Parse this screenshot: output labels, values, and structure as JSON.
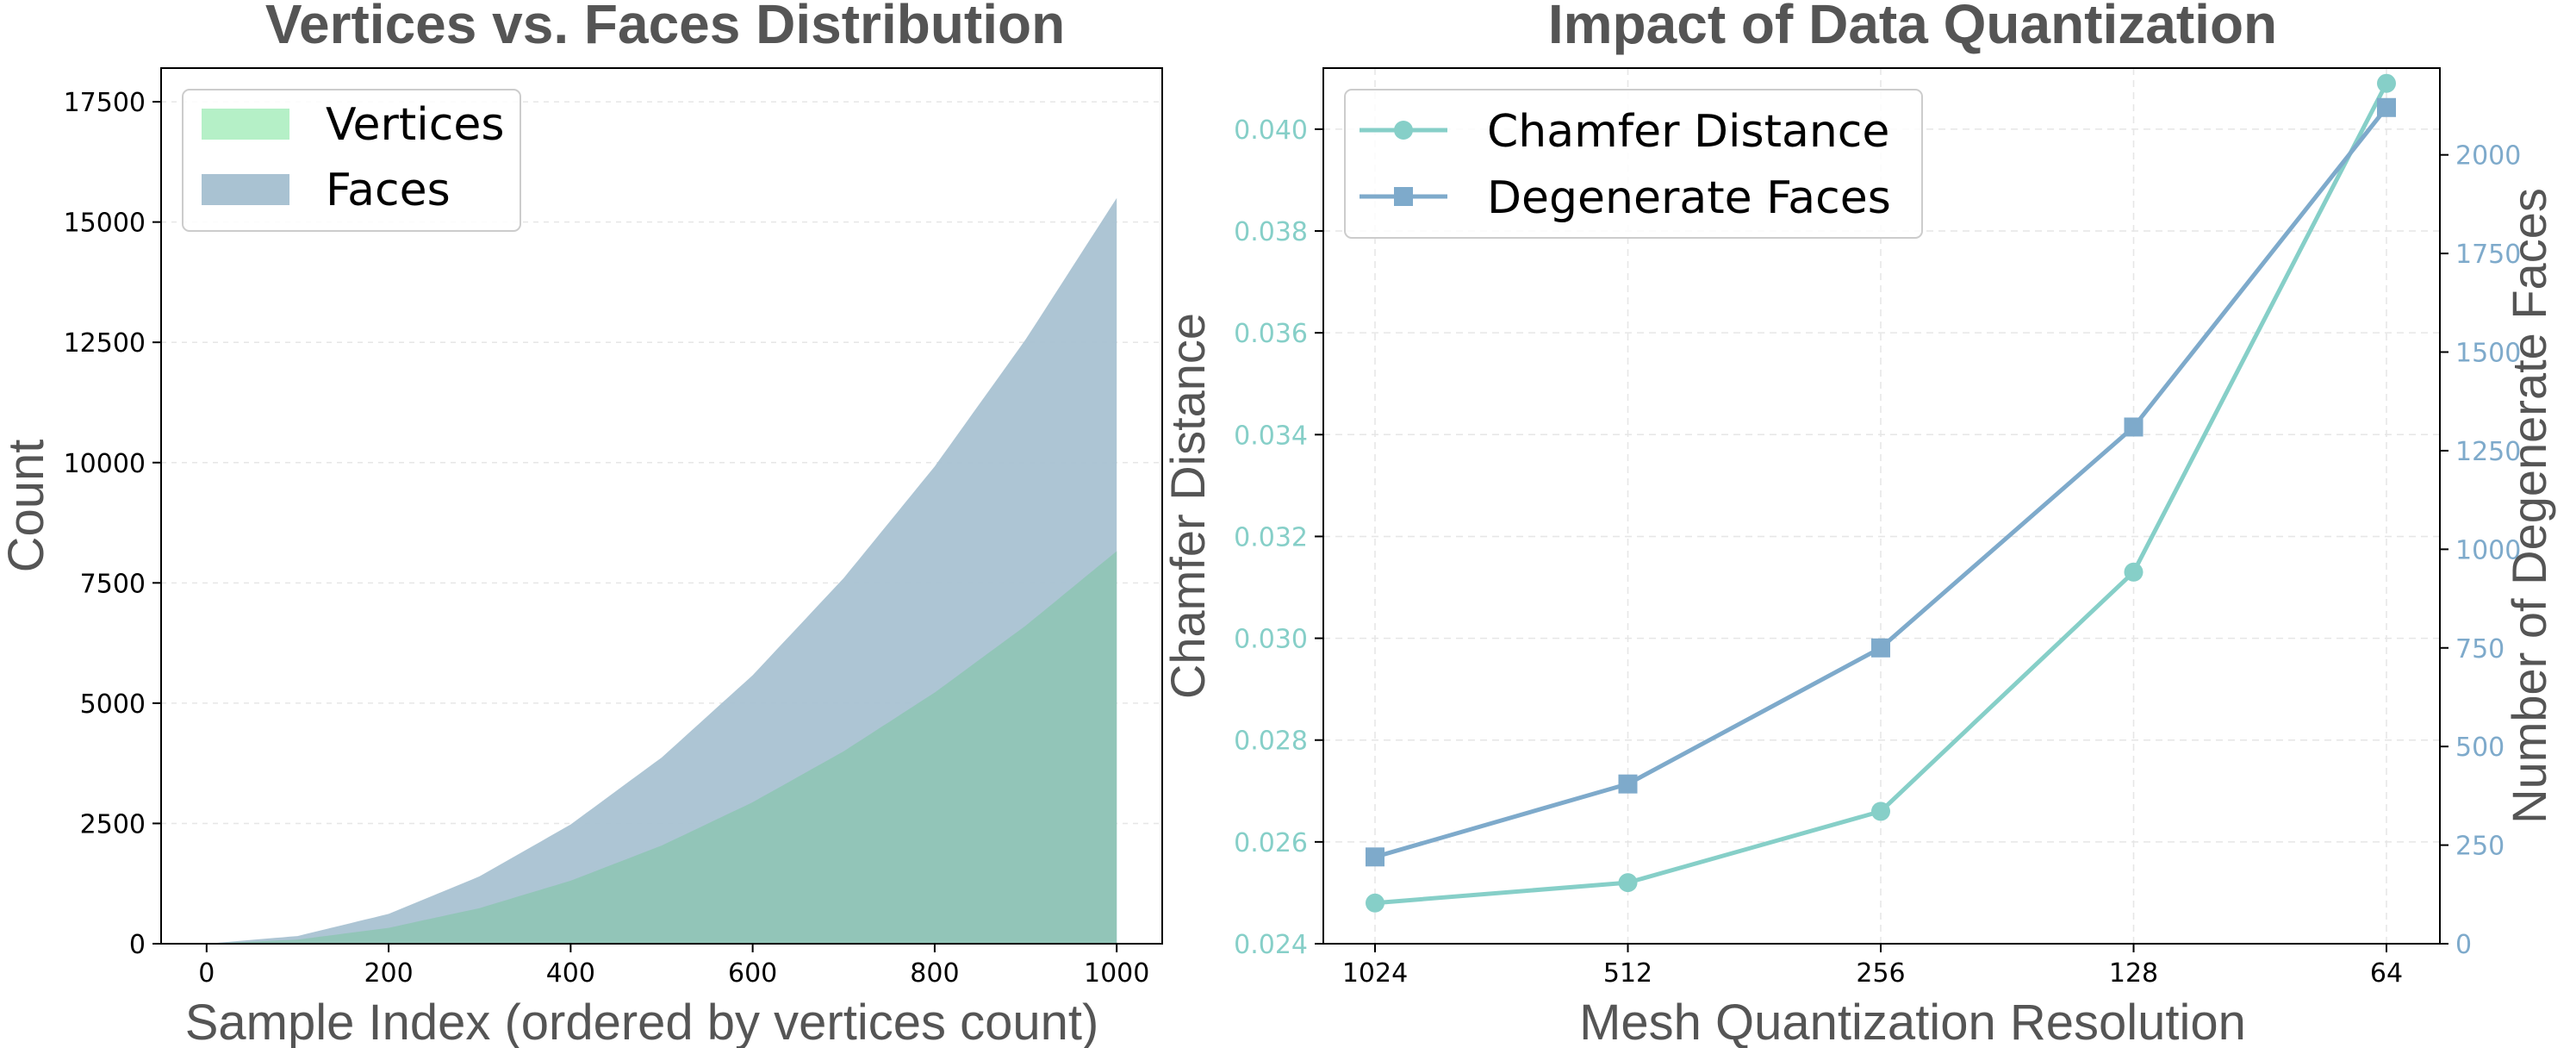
{
  "chart_data": [
    {
      "type": "bar",
      "title": "Vertices vs. Faces Distribution",
      "xlabel": "Sample Index (ordered by vertices count)",
      "ylabel": "Count",
      "xlim": [
        -50,
        1050
      ],
      "ylim": [
        0,
        18200
      ],
      "xticks": [
        0,
        200,
        400,
        600,
        800,
        1000
      ],
      "yticks": [
        0,
        2500,
        5000,
        7500,
        10000,
        12500,
        15000,
        17500
      ],
      "grid": true,
      "legend_position": "top-left",
      "series": [
        {
          "name": "Vertices",
          "color": "#b5f0c7",
          "sample_index": [
            0,
            100,
            200,
            300,
            400,
            500,
            600,
            700,
            800,
            900,
            1000
          ],
          "values": [
            0,
            85,
            330,
            740,
            1310,
            2040,
            2940,
            4000,
            5220,
            6610,
            8160
          ]
        },
        {
          "name": "Faces",
          "color": "#a9c2d2",
          "sample_index": [
            0,
            100,
            200,
            300,
            400,
            500,
            600,
            700,
            800,
            900,
            1000
          ],
          "values": [
            0,
            160,
            620,
            1400,
            2480,
            3870,
            5580,
            7600,
            9920,
            12560,
            15500
          ]
        }
      ]
    },
    {
      "type": "line",
      "title": "Impact of Data Quantization",
      "xlabel": "Mesh Quantization Resolution",
      "ylabel": "Chamfer Distance",
      "y2label": "Number of Degenerate Faces",
      "categories": [
        "1024",
        "512",
        "256",
        "128",
        "64"
      ],
      "ylim": [
        0.024,
        0.0412
      ],
      "y2lim": [
        0,
        2220
      ],
      "yticks": [
        0.024,
        0.026,
        0.028,
        0.03,
        0.032,
        0.034,
        0.036,
        0.038,
        0.04
      ],
      "ytick_labels": [
        "0.024",
        "0.026",
        "0.028",
        "0.030",
        "0.032",
        "0.034",
        "0.036",
        "0.038",
        "0.040"
      ],
      "y2ticks": [
        0,
        250,
        500,
        750,
        1000,
        1250,
        1500,
        1750,
        2000
      ],
      "grid": true,
      "legend_position": "top-left",
      "series": [
        {
          "name": "Chamfer Distance",
          "axis": "left",
          "color": "#86cfc8",
          "marker": "circle",
          "values": [
            0.0248,
            0.0252,
            0.0266,
            0.0313,
            0.0409
          ]
        },
        {
          "name": "Degenerate Faces",
          "axis": "right",
          "color": "#7eaacb",
          "marker": "square",
          "values": [
            220,
            405,
            750,
            1310,
            2120
          ]
        }
      ]
    }
  ],
  "colors": {
    "left_axis": "#86cfc8",
    "right_axis": "#7eaacb",
    "text": "#555555"
  }
}
